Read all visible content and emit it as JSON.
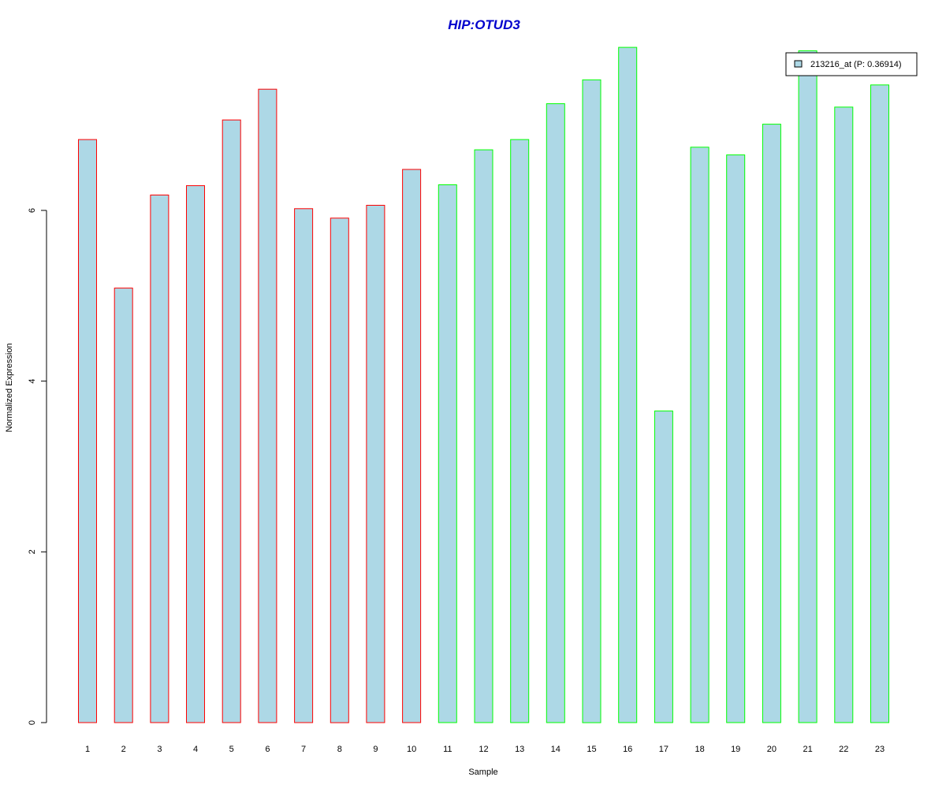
{
  "chart_data": {
    "type": "bar",
    "title": "HIP:OTUD3",
    "xlabel": "Sample",
    "ylabel": "Normalized Expression",
    "categories": [
      "1",
      "2",
      "3",
      "4",
      "5",
      "6",
      "7",
      "8",
      "9",
      "10",
      "11",
      "12",
      "13",
      "14",
      "15",
      "16",
      "17",
      "18",
      "19",
      "20",
      "21",
      "22",
      "23"
    ],
    "series": [
      {
        "name": "213216_at (P: 0.36914)",
        "values": [
          6.83,
          5.09,
          6.18,
          6.29,
          7.06,
          7.42,
          6.02,
          5.91,
          6.06,
          6.48,
          6.3,
          6.71,
          6.83,
          7.25,
          7.53,
          7.91,
          3.65,
          6.74,
          6.65,
          7.01,
          7.87,
          7.21,
          7.47
        ]
      }
    ],
    "groups": [
      {
        "samples": [
          1,
          10
        ],
        "border_color": "#FF0000"
      },
      {
        "samples": [
          11,
          23
        ],
        "border_color": "#00FF00"
      }
    ],
    "fill_color": "#ADD8E6",
    "yticks": [
      0,
      2,
      4,
      6
    ],
    "ylim": [
      0,
      7.91
    ],
    "grid": false,
    "legend_position": "top-right"
  }
}
